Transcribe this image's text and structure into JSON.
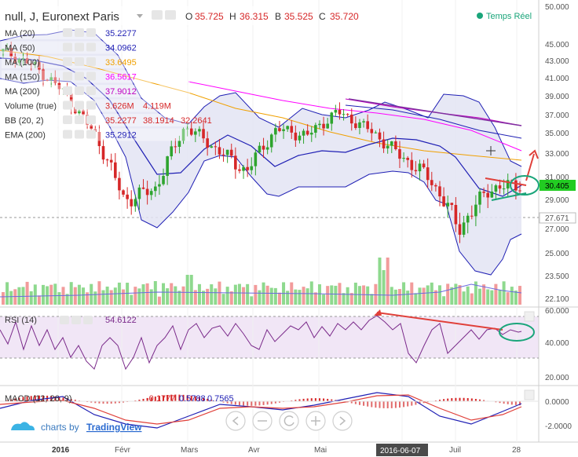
{
  "header": {
    "symbol": "null, J, Euronext Paris",
    "ohlc": [
      {
        "key": "O",
        "value": "35.725"
      },
      {
        "key": "H",
        "value": "36.315"
      },
      {
        "key": "B",
        "value": "35.525"
      },
      {
        "key": "C",
        "value": "35.720"
      }
    ],
    "realtime": "Temps Réel"
  },
  "indicators": [
    {
      "name": "MA (20)",
      "values": [
        "35.2277"
      ],
      "color": "#1f1fb4"
    },
    {
      "name": "MA (50)",
      "values": [
        "34.0962"
      ],
      "color": "#1f1fb4"
    },
    {
      "name": "MA (100)",
      "values": [
        "33.6495"
      ],
      "color": "#f0a000"
    },
    {
      "name": "MA (150)",
      "values": [
        "36.5617"
      ],
      "color": "#ff00ff"
    },
    {
      "name": "MA (200)",
      "values": [
        "37.9012"
      ],
      "color": "#c000c0"
    },
    {
      "name": "Volume (true)",
      "values": [
        "3.626M",
        "4.119M"
      ],
      "color": "#d62728"
    },
    {
      "name": "BB (20, 2)",
      "values": [
        "35.2277",
        "38.1914",
        "32.2641"
      ],
      "color": "#d62728"
    },
    {
      "name": "EMA (200)",
      "values": [
        "35.2912"
      ],
      "color": "#1f1fb4"
    }
  ],
  "price_axis": {
    "ticks": [
      "50.000",
      "45.000",
      "43.000",
      "41.000",
      "39.000",
      "37.000",
      "35.000",
      "33.000",
      "31.000",
      "29.000",
      "27.000",
      "25.000",
      "23.500",
      "22.100"
    ],
    "last_price_label": "30.405",
    "marker_label": "27.671"
  },
  "rsi": {
    "label": "RSI (14)",
    "value": "54.6122",
    "ticks": [
      "60.000",
      "40.000",
      "20.000"
    ]
  },
  "macd": {
    "label": "MACD (12, 26, 9)",
    "values": [
      "-0.1777",
      "0.5788",
      "0.7565"
    ],
    "ticks": [
      "0.0000",
      "-2.0000"
    ]
  },
  "time_axis": {
    "labels": [
      "2016",
      "Févr",
      "Mars",
      "Avr",
      "Mai",
      "2016-06-07",
      "Juil",
      "28"
    ]
  },
  "branding": {
    "prefix": "charts by",
    "name": "TradingView"
  },
  "colors": {
    "up": "#2ea42e",
    "down": "#d62728",
    "accent": "#1f1fb4",
    "highlight": "#22cc22"
  },
  "chart_data": {
    "type": "candlestick",
    "title": "null, J, Euronext Paris",
    "ylim": [
      22.1,
      50.0
    ],
    "x_labels": [
      "2016",
      "Févr",
      "Mars",
      "Avr",
      "Mai",
      "2016-06-07",
      "Juil",
      "28"
    ],
    "price_close_trend": [
      44.2,
      42.5,
      39.5,
      35.0,
      29.0,
      30.0,
      35.8,
      33.5,
      31.5,
      35.5,
      34.8,
      37.4,
      35.5,
      33.0,
      31.0,
      27.0,
      30.0,
      30.4
    ],
    "last_price": 30.405,
    "series": [
      {
        "name": "MA (20)",
        "values": [
          35.2277
        ]
      },
      {
        "name": "MA (50)",
        "values": [
          34.0962
        ]
      },
      {
        "name": "MA (100)",
        "values": [
          33.6495
        ]
      },
      {
        "name": "MA (150)",
        "values": [
          36.5617
        ]
      },
      {
        "name": "MA (200)",
        "values": [
          37.9012
        ]
      },
      {
        "name": "BB (20, 2)",
        "values": [
          35.2277,
          38.1914,
          32.2641
        ]
      },
      {
        "name": "EMA (200)",
        "values": [
          35.2912
        ]
      }
    ],
    "volume": {
      "values_label": [
        "3.626M",
        "4.119M"
      ]
    },
    "rsi": {
      "value": 54.6122,
      "levels": [
        60,
        40,
        20
      ]
    },
    "macd": {
      "values": [
        -0.1777,
        0.5788,
        0.7565
      ]
    }
  }
}
